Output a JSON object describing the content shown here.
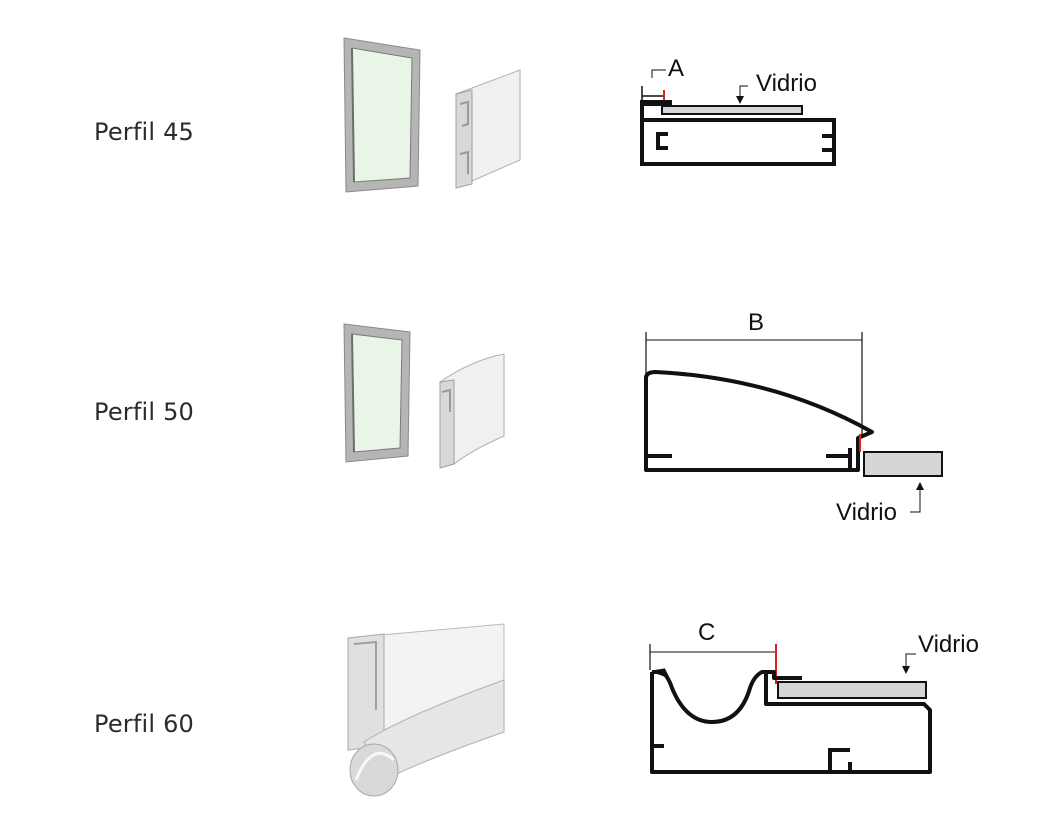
{
  "profiles": [
    {
      "label": "Perfil 45",
      "dimension": "A",
      "glass": "Vidrio"
    },
    {
      "label": "Perfil 50",
      "dimension": "B",
      "glass": "Vidrio"
    },
    {
      "label": "Perfil 60",
      "dimension": "C",
      "glass": "Vidrio"
    }
  ],
  "colors": {
    "outline": "#111111",
    "glass": "#d6d6d6",
    "marker": "#e02020",
    "frame": "#9a9a9a",
    "pane": "#e9f5e6"
  }
}
